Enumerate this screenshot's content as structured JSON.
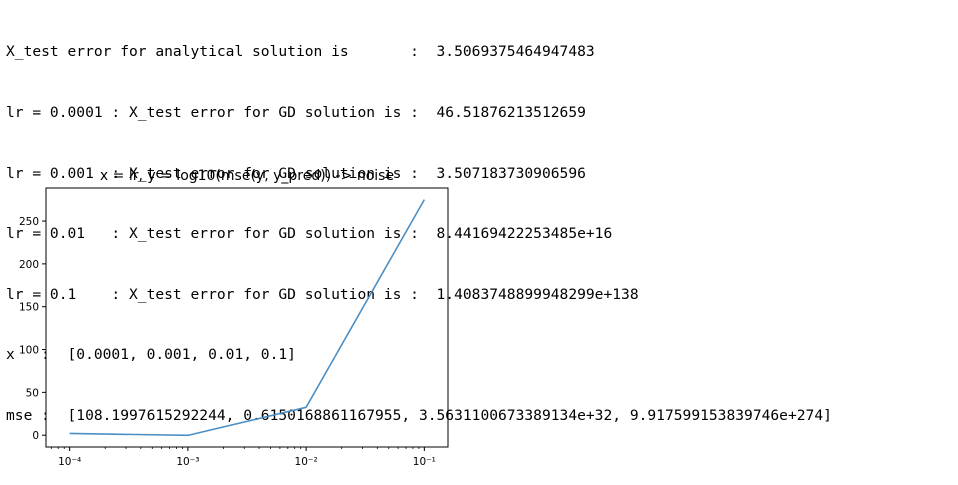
{
  "console": {
    "lines": [
      "X_test error for analytical solution is       :  3.5069375464947483",
      "lr = 0.0001 : X_test error for GD solution is :  46.51876213512659",
      "lr = 0.001  : X_test error for GD solution is :  3.507183730906596",
      "lr = 0.01   : X_test error for GD solution is :  8.44169422253485e+16",
      "lr = 0.1    : X_test error for GD solution is :  1.4083748899948299e+138",
      "x   :  [0.0001, 0.001, 0.01, 0.1]",
      "mse :  [108.1997615292244, 0.6150168861167955, 3.5631100673389134e+32, 9.917599153839746e+274]"
    ]
  },
  "chart_data": {
    "type": "line",
    "title": "x = lr, y = log10(mse(y, y_pred)) -> noise",
    "x_scale": "log",
    "x": [
      0.0001,
      0.001,
      0.01,
      0.1
    ],
    "x_tick_labels": [
      {
        "value": 0.0001,
        "label": "10⁻⁴"
      },
      {
        "value": 0.001,
        "label": "10⁻³"
      },
      {
        "value": 0.01,
        "label": "10⁻²"
      },
      {
        "value": 0.1,
        "label": "10⁻¹"
      }
    ],
    "series": [
      {
        "values": [
          2.0342,
          -0.2111,
          32.5518,
          274.9964
        ],
        "color": "#4c8fc4"
      }
    ],
    "yticks": [
      0,
      50,
      100,
      150,
      200,
      250
    ],
    "xlim": [
      6.31e-05,
      0.1585
    ],
    "ylim": [
      -13.8,
      288.6
    ],
    "grid": false,
    "legend": "none"
  }
}
